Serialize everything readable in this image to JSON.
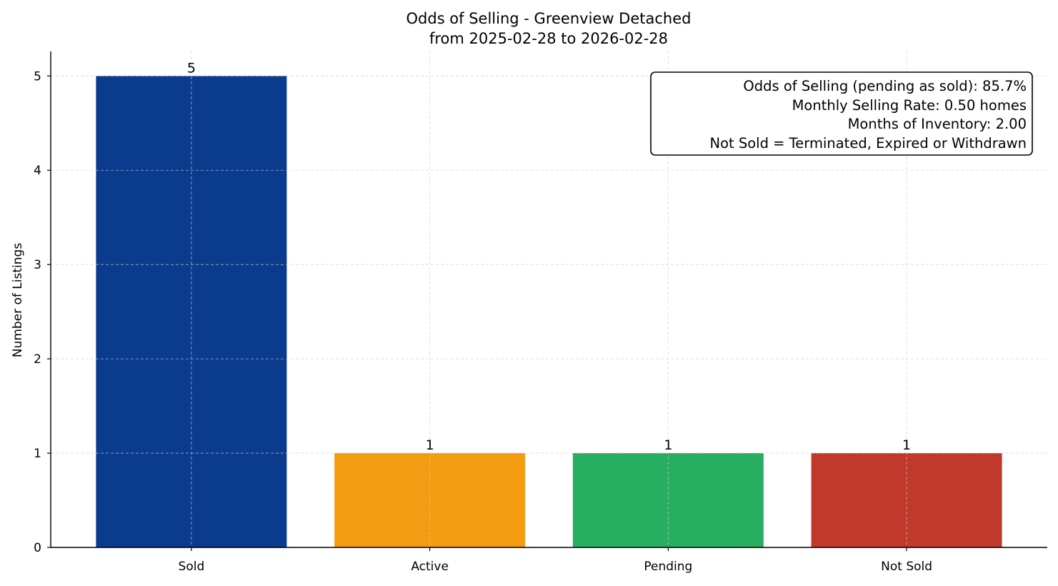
{
  "chart_data": {
    "type": "bar",
    "title": "Odds of Selling - Greenview Detached",
    "subtitle": "from 2025-02-28 to 2026-02-28",
    "xlabel": "",
    "ylabel": "Number of Listings",
    "categories": [
      "Sold",
      "Active",
      "Pending",
      "Not Sold"
    ],
    "values": [
      5,
      1,
      1,
      1
    ],
    "data_labels": [
      "5",
      "1",
      "1",
      "1"
    ],
    "colors": [
      "#0b3b8c",
      "#f39c12",
      "#27ae60",
      "#c0392b"
    ],
    "ylim": [
      0,
      5.26
    ],
    "yticks": [
      0,
      1,
      2,
      3,
      4,
      5
    ],
    "grid": true,
    "annotation": {
      "placement": "top-right",
      "lines": [
        "Odds of Selling (pending as sold): 85.7%",
        "Monthly Selling Rate: 0.50 homes",
        "Months of Inventory: 2.00",
        "Not Sold = Terminated, Expired or Withdrawn"
      ]
    }
  }
}
